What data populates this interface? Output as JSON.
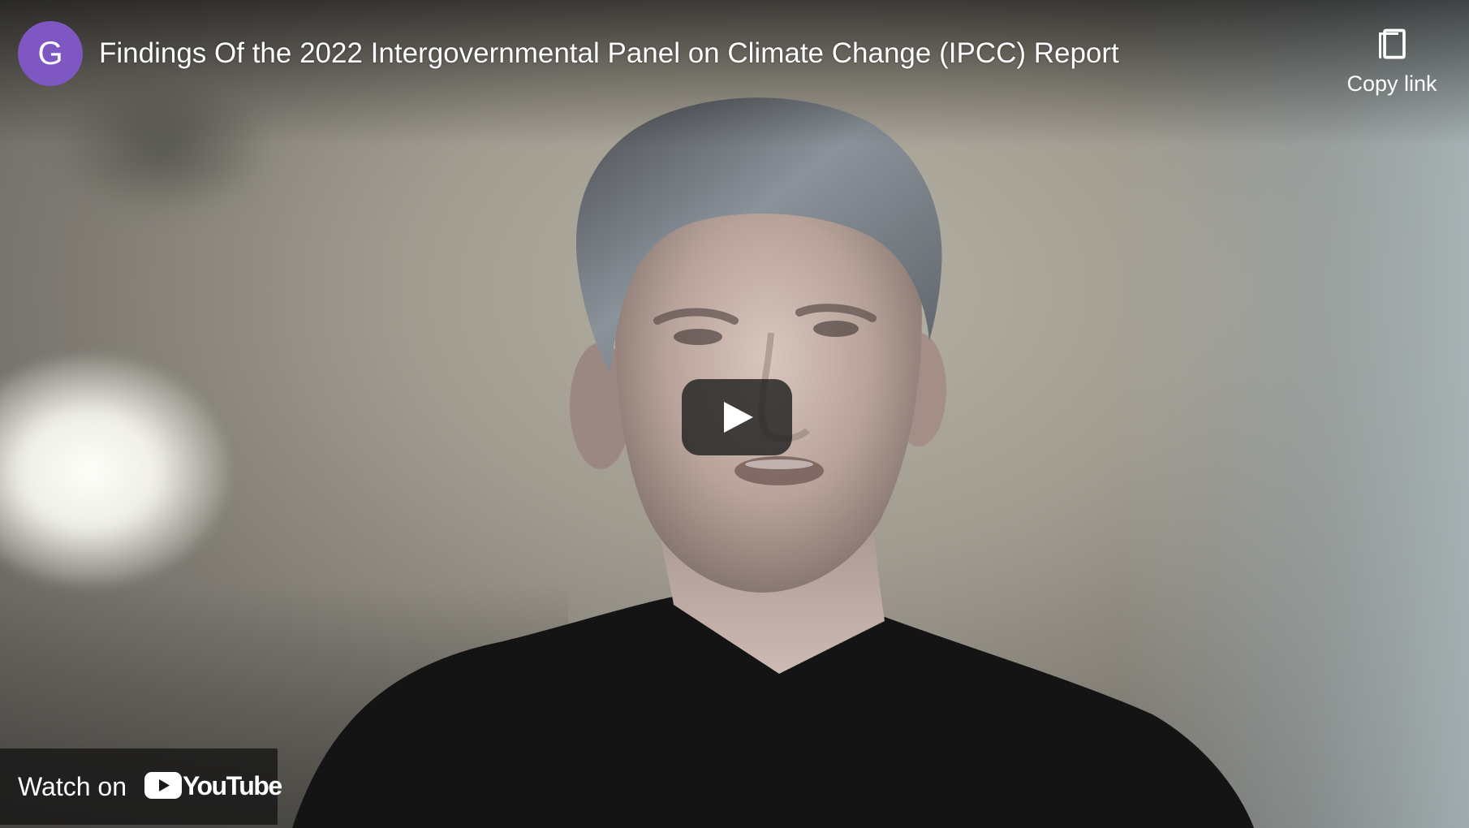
{
  "video": {
    "title": "Findings Of the 2022 Intergovernmental Panel on Climate Change (IPCC) Report",
    "channel_initial": "G",
    "avatar_color": "#7e57c2"
  },
  "actions": {
    "copy_link_label": "Copy link",
    "copy_icon": "copy-icon",
    "play_icon": "play-icon"
  },
  "watch_on": {
    "label": "Watch on",
    "brand": "YouTube",
    "brand_icon": "youtube-logo-icon"
  }
}
